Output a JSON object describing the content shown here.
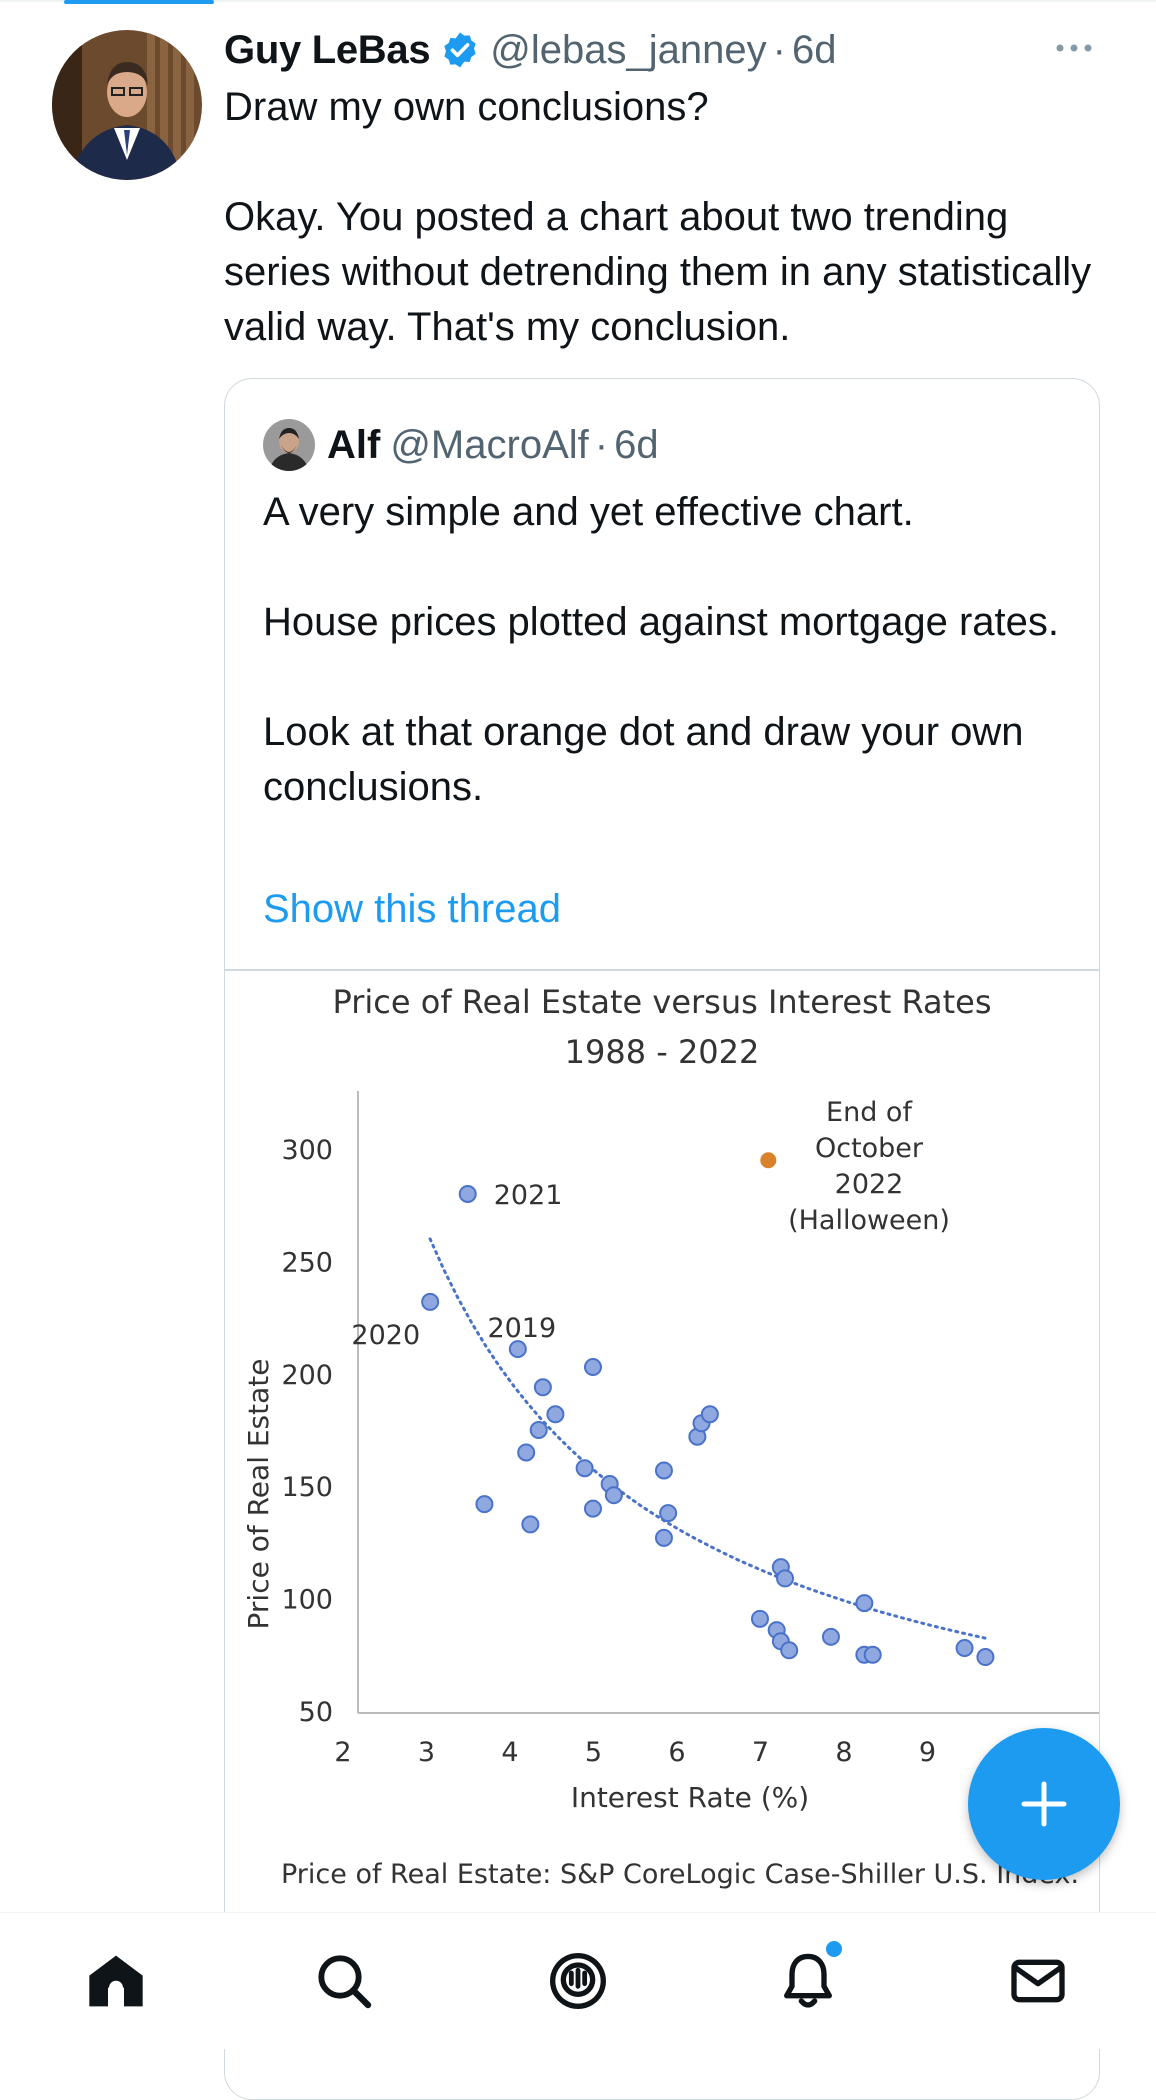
{
  "tweet": {
    "author_name": "Guy LeBas",
    "handle": "@lebas_janney",
    "separator": "·",
    "time": "6d",
    "verified": true,
    "paragraphs": [
      "Draw my own conclusions?",
      "Okay.  You posted a chart about two trending series without detrending them in any statistically valid way.  That's my conclusion."
    ]
  },
  "quoted_tweet": {
    "author_name": "Alf",
    "handle": "@MacroAlf",
    "separator": "·",
    "time": "6d",
    "paragraphs": [
      "A very simple and yet effective chart.",
      "House prices plotted against mortgage rates.",
      "Look at that orange dot and draw your own conclusions."
    ],
    "show_thread": "Show this thread"
  },
  "chart_data": {
    "type": "scatter",
    "title": "Price of Real Estate versus Interest Rates",
    "subtitle": "1988 - 2022",
    "xlabel": "Interest Rate (%)",
    "ylabel": "Price of Real Estate",
    "xlim": [
      2,
      10
    ],
    "ylim": [
      50,
      320
    ],
    "xticks": [
      "2",
      "3",
      "4",
      "5",
      "6",
      "7",
      "8",
      "9"
    ],
    "yticks": [
      "300",
      "250",
      "200",
      "150",
      "100",
      "50"
    ],
    "grid": false,
    "points": [
      {
        "x": 2.9,
        "y": 232
      },
      {
        "x": 3.35,
        "y": 280
      },
      {
        "x": 3.55,
        "y": 142
      },
      {
        "x": 3.95,
        "y": 211
      },
      {
        "x": 4.05,
        "y": 165
      },
      {
        "x": 4.1,
        "y": 133
      },
      {
        "x": 4.2,
        "y": 175
      },
      {
        "x": 4.25,
        "y": 194
      },
      {
        "x": 4.4,
        "y": 182
      },
      {
        "x": 4.75,
        "y": 158
      },
      {
        "x": 4.85,
        "y": 140
      },
      {
        "x": 4.85,
        "y": 203
      },
      {
        "x": 5.05,
        "y": 151
      },
      {
        "x": 5.1,
        "y": 146
      },
      {
        "x": 5.7,
        "y": 157
      },
      {
        "x": 5.7,
        "y": 127
      },
      {
        "x": 5.75,
        "y": 138
      },
      {
        "x": 6.1,
        "y": 172
      },
      {
        "x": 6.15,
        "y": 178
      },
      {
        "x": 6.25,
        "y": 182
      },
      {
        "x": 6.85,
        "y": 91
      },
      {
        "x": 7.05,
        "y": 86
      },
      {
        "x": 7.1,
        "y": 81
      },
      {
        "x": 7.1,
        "y": 114
      },
      {
        "x": 7.15,
        "y": 109
      },
      {
        "x": 7.2,
        "y": 77
      },
      {
        "x": 7.7,
        "y": 83
      },
      {
        "x": 8.1,
        "y": 75
      },
      {
        "x": 8.2,
        "y": 75
      },
      {
        "x": 8.1,
        "y": 98
      },
      {
        "x": 9.3,
        "y": 78
      },
      {
        "x": 9.55,
        "y": 74
      }
    ],
    "highlight": {
      "x": 6.95,
      "y": 295,
      "color": "#d9822b",
      "label": [
        "End of",
        "October",
        "2022",
        "(Halloween)"
      ]
    },
    "point_labels": [
      {
        "text": "2021",
        "x": 3.35,
        "y": 280
      },
      {
        "text": "2020",
        "x": 2.9,
        "y": 232
      },
      {
        "text": "2019",
        "x": 3.95,
        "y": 211
      }
    ],
    "trendline": {
      "style": "dotted",
      "x": [
        2.9,
        9.6
      ],
      "y_start": 260,
      "y_end": 82
    },
    "point_color": "#8fa9e0",
    "point_stroke": "#4a72c9",
    "source_note": "Price of Real Estate: S&P CoreLogic Case-Shiller U.S. Index."
  },
  "bottom_nav": {
    "items": [
      "home-icon",
      "search-icon",
      "spaces-icon",
      "notifications-icon",
      "messages-icon"
    ],
    "notification_dot": true
  },
  "fab": {
    "icon": "compose-plus-icon"
  },
  "colors": {
    "accent": "#1d9bf0",
    "secondary_text": "#536471",
    "border": "#cfd9de"
  }
}
